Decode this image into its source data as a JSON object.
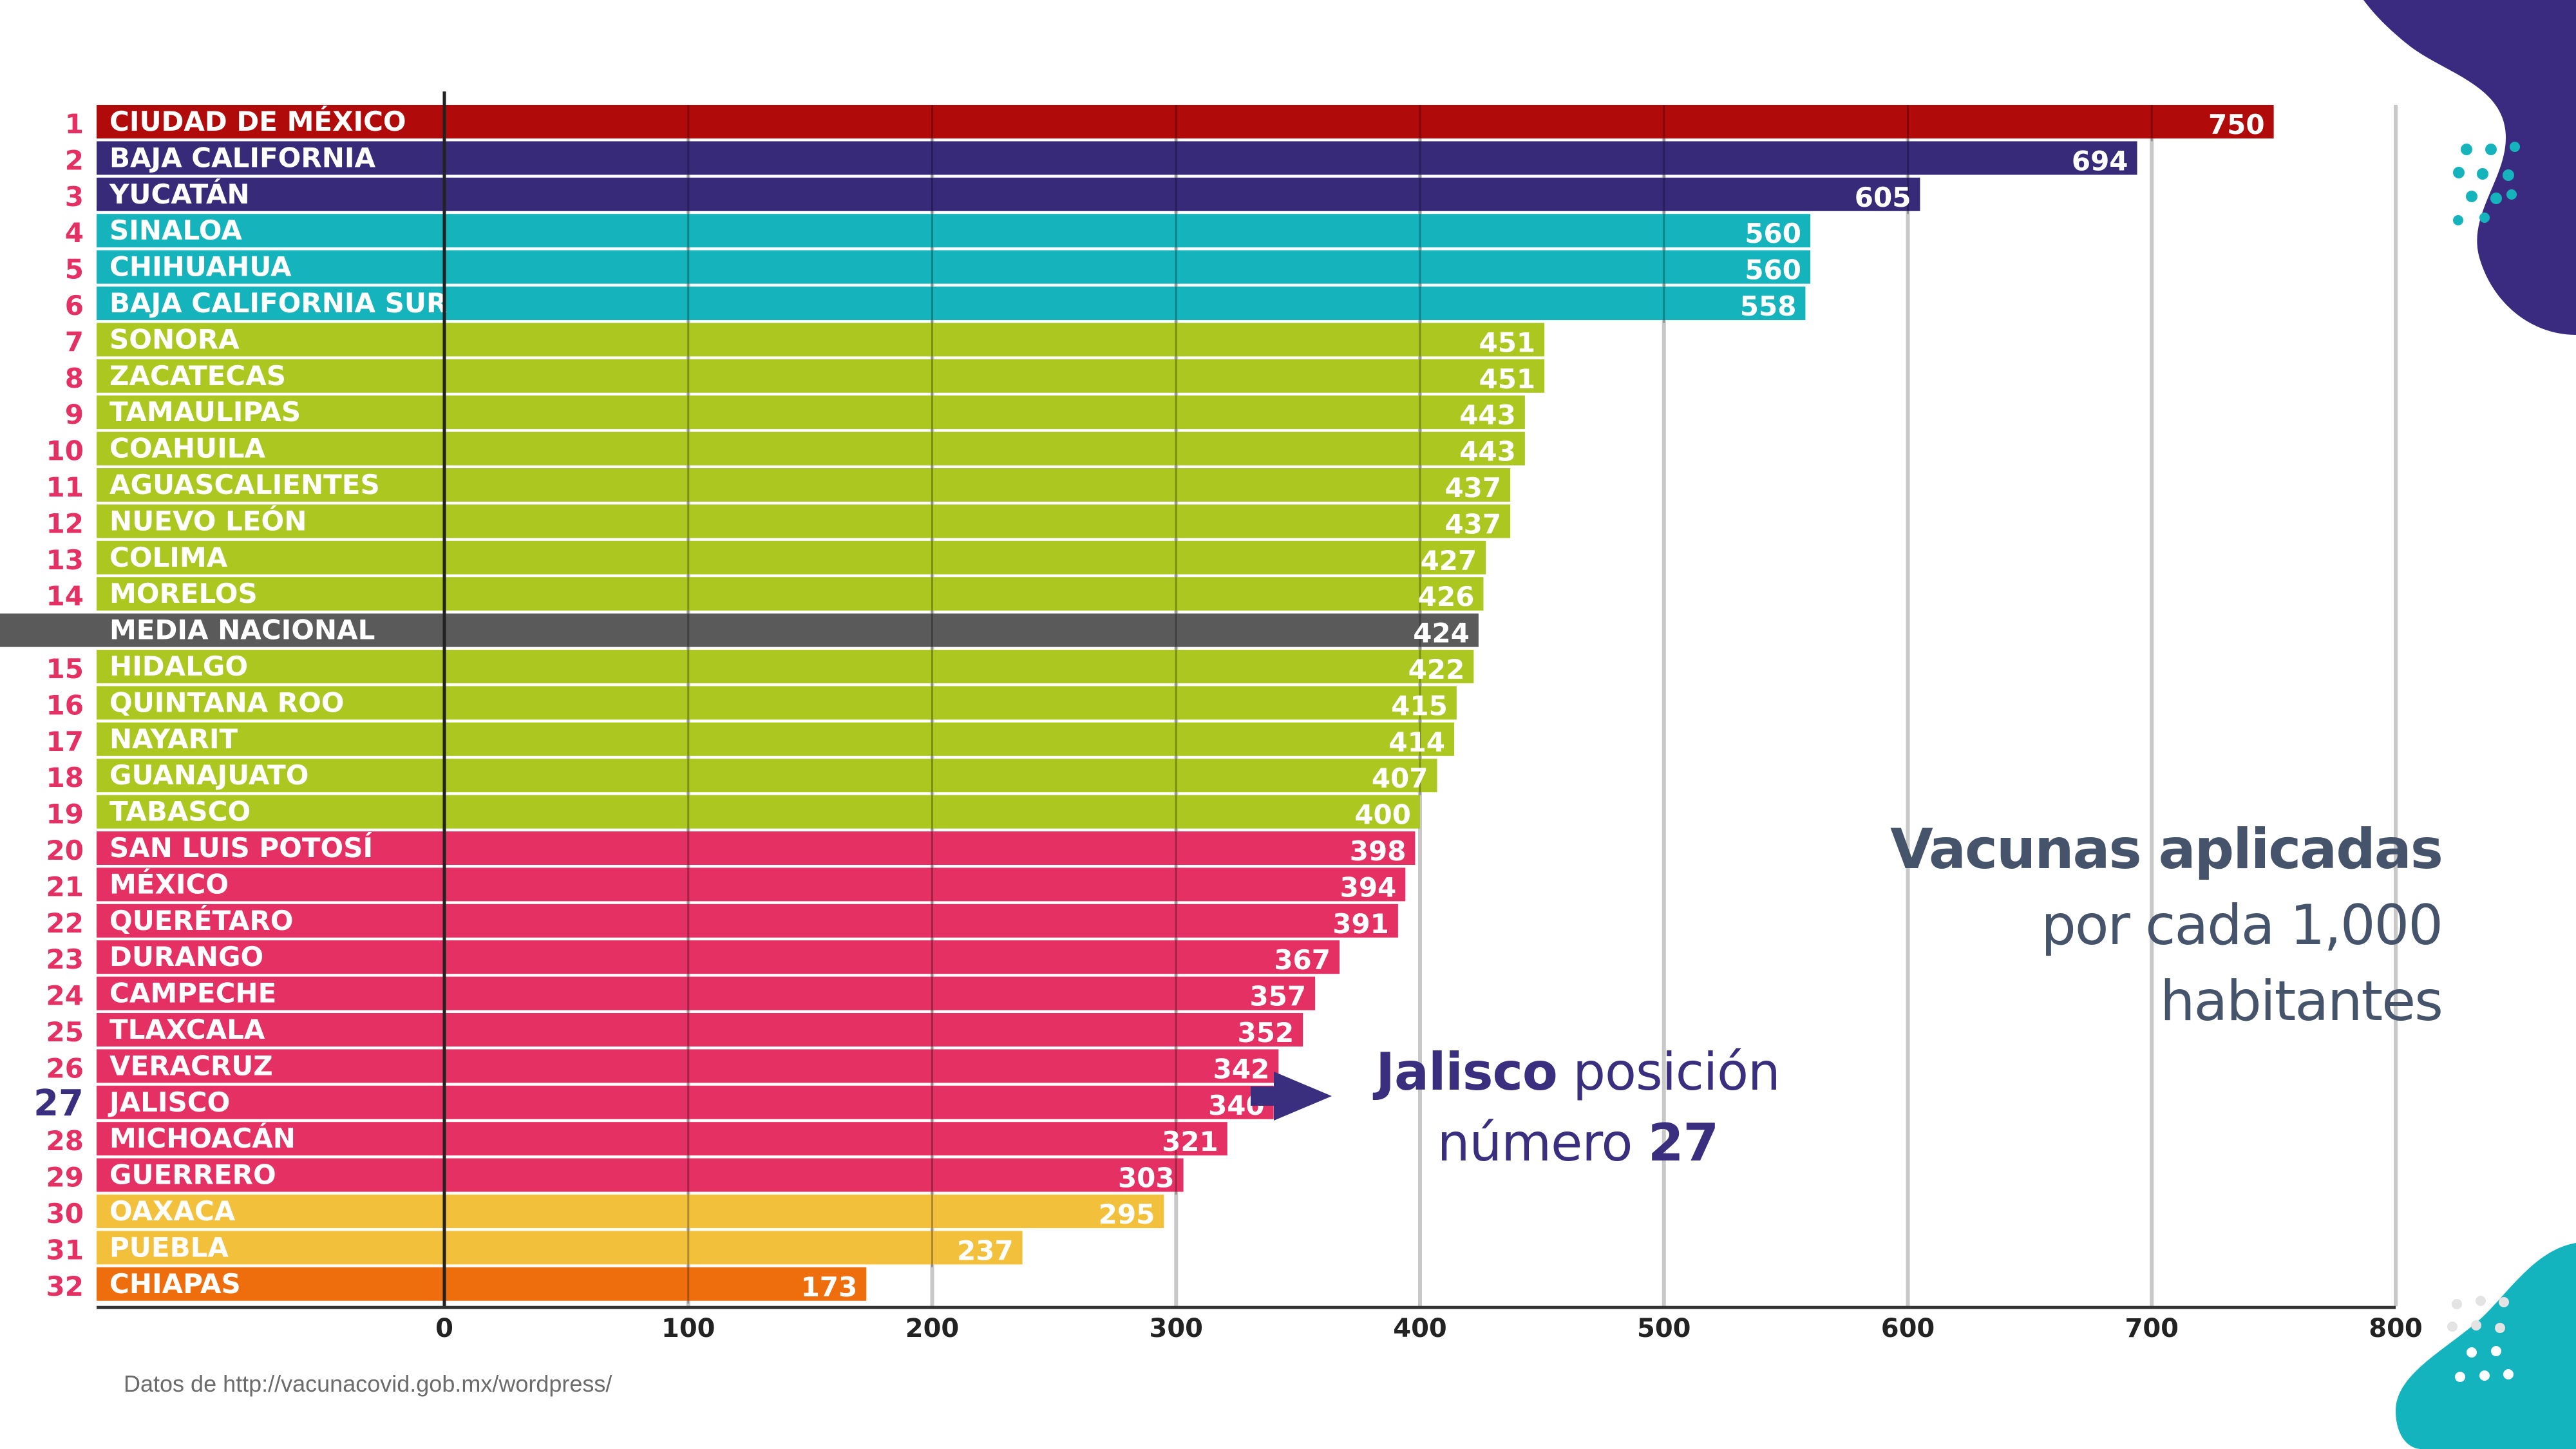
{
  "colors": {
    "red": "#b10a0a",
    "navy": "#372b79",
    "teal": "#15b4bd",
    "lime": "#abc720",
    "gray": "#5a5a5a",
    "pink": "#e53063",
    "yellow": "#f2c03a",
    "orange": "#ee6d0c",
    "ink": "#45546a",
    "accent_text": "#3a2f7e"
  },
  "chart_data": {
    "type": "bar",
    "orientation": "horizontal",
    "xlim": [
      0,
      800
    ],
    "xticks": [
      "0",
      "100",
      "200",
      "300",
      "400",
      "500",
      "600",
      "700",
      "800"
    ],
    "grid": true,
    "rows": [
      {
        "rank": "1",
        "name": "CIUDAD DE MÉXICO",
        "value": 750,
        "label": "750",
        "color": "red"
      },
      {
        "rank": "2",
        "name": "BAJA CALIFORNIA",
        "value": 694,
        "label": "694",
        "color": "navy"
      },
      {
        "rank": "3",
        "name": "YUCATÁN",
        "value": 605,
        "label": "605",
        "color": "navy"
      },
      {
        "rank": "4",
        "name": "SINALOA",
        "value": 560,
        "label": "560",
        "color": "teal"
      },
      {
        "rank": "5",
        "name": "CHIHUAHUA",
        "value": 560,
        "label": "560",
        "color": "teal"
      },
      {
        "rank": "6",
        "name": "BAJA CALIFORNIA SUR",
        "value": 558,
        "label": "558",
        "color": "teal"
      },
      {
        "rank": "7",
        "name": "SONORA",
        "value": 451,
        "label": "451",
        "color": "lime"
      },
      {
        "rank": "8",
        "name": "ZACATECAS",
        "value": 451,
        "label": "451",
        "color": "lime"
      },
      {
        "rank": "9",
        "name": "TAMAULIPAS",
        "value": 443,
        "label": "443",
        "color": "lime"
      },
      {
        "rank": "10",
        "name": "COAHUILA",
        "value": 443,
        "label": "443",
        "color": "lime"
      },
      {
        "rank": "11",
        "name": "AGUASCALIENTES",
        "value": 437,
        "label": "437",
        "color": "lime"
      },
      {
        "rank": "12",
        "name": "NUEVO LEÓN",
        "value": 437,
        "label": "437",
        "color": "lime"
      },
      {
        "rank": "13",
        "name": "COLIMA",
        "value": 427,
        "label": "427",
        "color": "lime"
      },
      {
        "rank": "14",
        "name": "MORELOS",
        "value": 426,
        "label": "426",
        "color": "lime"
      },
      {
        "rank": "",
        "name": "MEDIA NACIONAL",
        "value": 424,
        "label": "424",
        "color": "gray"
      },
      {
        "rank": "15",
        "name": "HIDALGO",
        "value": 422,
        "label": "422",
        "color": "lime"
      },
      {
        "rank": "16",
        "name": "QUINTANA ROO",
        "value": 415,
        "label": "415",
        "color": "lime"
      },
      {
        "rank": "17",
        "name": "NAYARIT",
        "value": 414,
        "label": "414",
        "color": "lime"
      },
      {
        "rank": "18",
        "name": "GUANAJUATO",
        "value": 407,
        "label": "407",
        "color": "lime"
      },
      {
        "rank": "19",
        "name": "TABASCO",
        "value": 400,
        "label": "400",
        "color": "lime"
      },
      {
        "rank": "20",
        "name": "SAN LUIS POTOSÍ",
        "value": 398,
        "label": "398",
        "color": "pink"
      },
      {
        "rank": "21",
        "name": "MÉXICO",
        "value": 394,
        "label": "394",
        "color": "pink"
      },
      {
        "rank": "22",
        "name": "QUERÉTARO",
        "value": 391,
        "label": "391",
        "color": "pink"
      },
      {
        "rank": "23",
        "name": "DURANGO",
        "value": 367,
        "label": "367",
        "color": "pink"
      },
      {
        "rank": "24",
        "name": "CAMPECHE",
        "value": 357,
        "label": "357",
        "color": "pink"
      },
      {
        "rank": "25",
        "name": "TLAXCALA",
        "value": 352,
        "label": "352",
        "color": "pink"
      },
      {
        "rank": "26",
        "name": "VERACRUZ",
        "value": 342,
        "label": "342",
        "color": "pink"
      },
      {
        "rank": "27",
        "name": "JALISCO",
        "value": 340,
        "label": "340",
        "color": "pink",
        "highlight": true
      },
      {
        "rank": "28",
        "name": "MICHOACÁN",
        "value": 321,
        "label": "321",
        "color": "pink"
      },
      {
        "rank": "29",
        "name": "GUERRERO",
        "value": 303,
        "label": "303",
        "color": "pink"
      },
      {
        "rank": "30",
        "name": "OAXACA",
        "value": 295,
        "label": "295",
        "color": "yellow"
      },
      {
        "rank": "31",
        "name": "PUEBLA",
        "value": 237,
        "label": "237",
        "color": "yellow"
      },
      {
        "rank": "32",
        "name": "CHIAPAS",
        "value": 173,
        "label": "173",
        "color": "orange"
      }
    ]
  },
  "title": {
    "line1": "Vacunas aplicadas",
    "line2": "por cada 1,000",
    "line3": "habitantes"
  },
  "callout": {
    "strong1": "Jalisco",
    "text1": " posición",
    "text2": "número ",
    "strong2": "27",
    "arrow_icon": "right-arrow-icon"
  },
  "source": "Datos de http://vacunacovid.gob.mx/wordpress/",
  "decor": {
    "top_right_icon": "purple-blob-icon",
    "bottom_right_icon": "teal-blob-icon"
  }
}
